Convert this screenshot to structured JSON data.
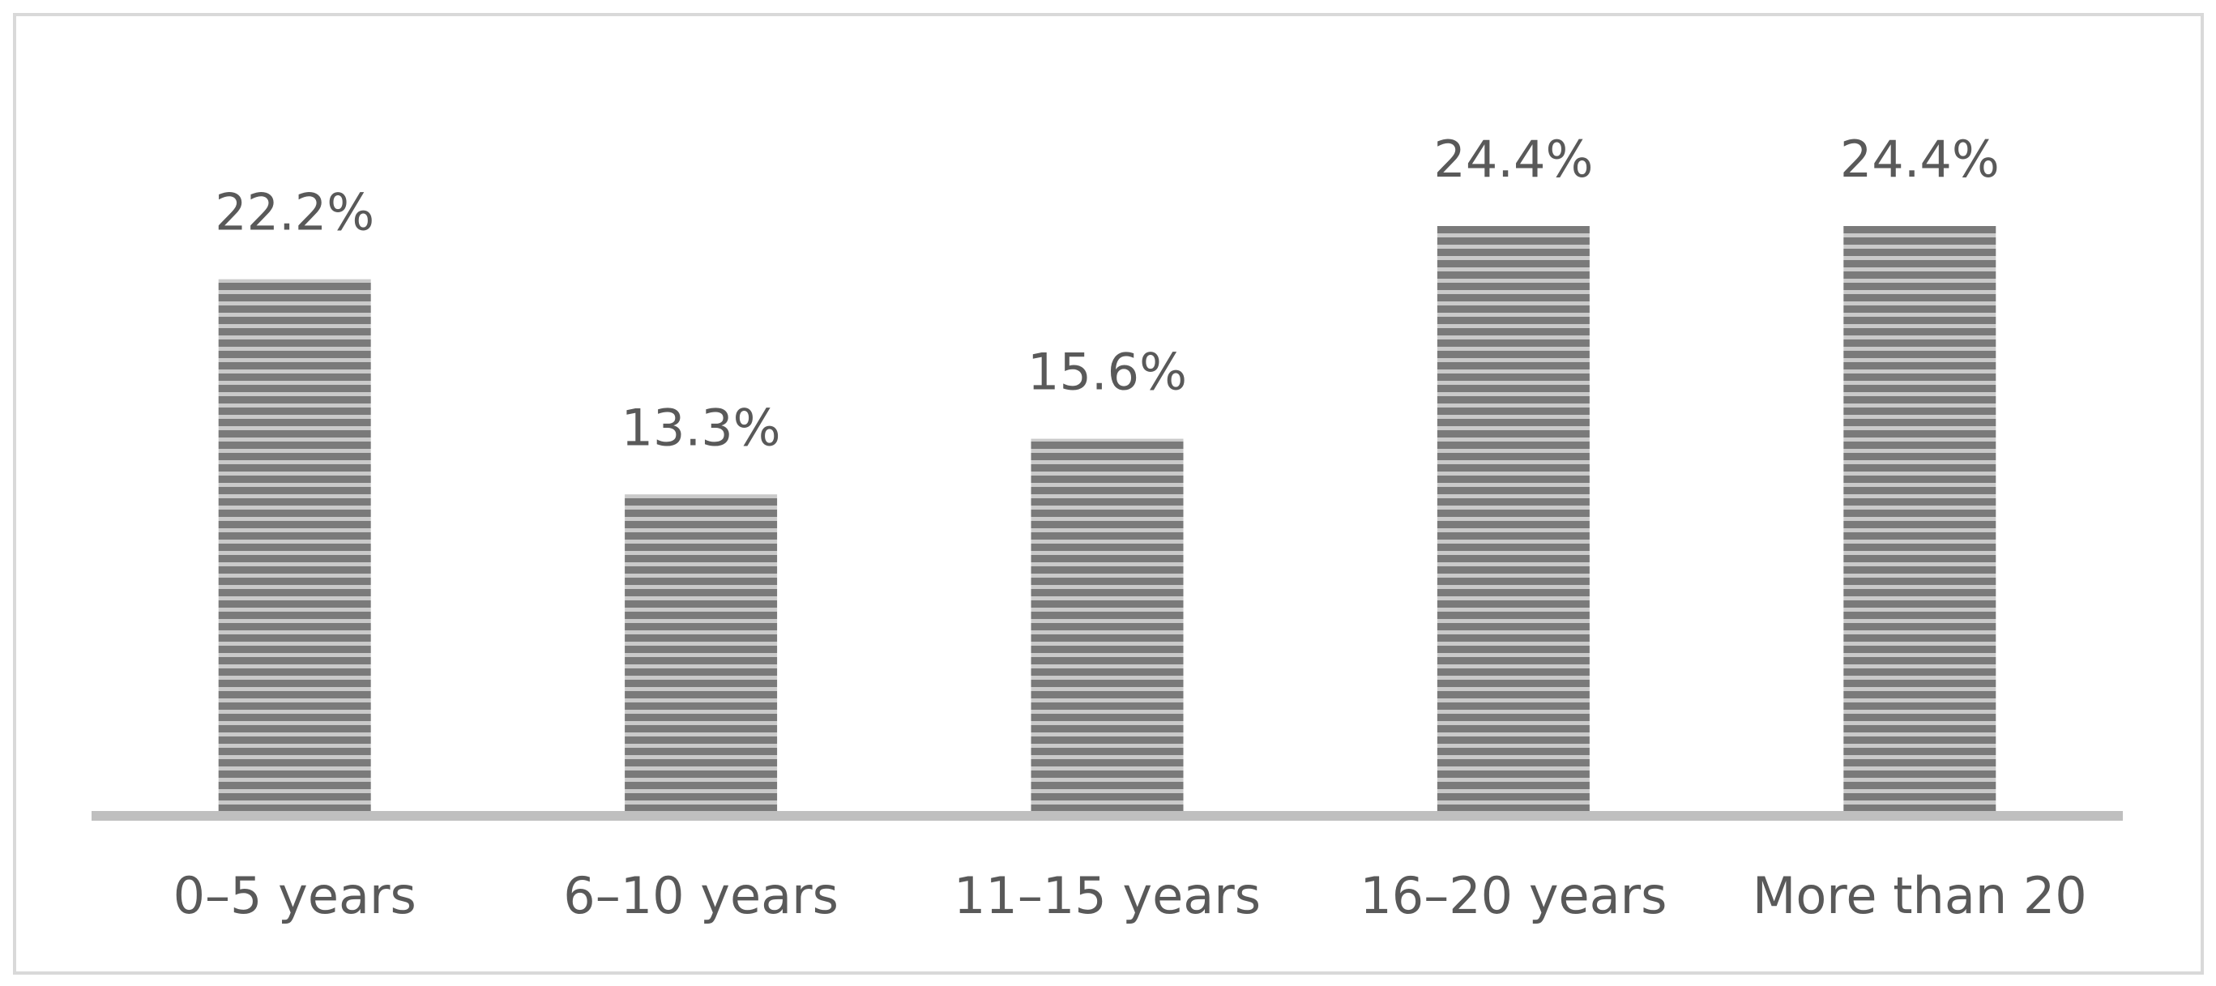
{
  "chart_data": {
    "type": "bar",
    "categories": [
      "0–5 years",
      "6–10 years",
      "11–15 years",
      "16–20 years",
      "More than 20"
    ],
    "values": [
      22.2,
      13.3,
      15.6,
      24.4,
      24.4
    ],
    "value_labels": [
      "22.2%",
      "13.3%",
      "15.6%",
      "24.4%",
      "24.4%"
    ],
    "color": "#7a7a7a"
  }
}
